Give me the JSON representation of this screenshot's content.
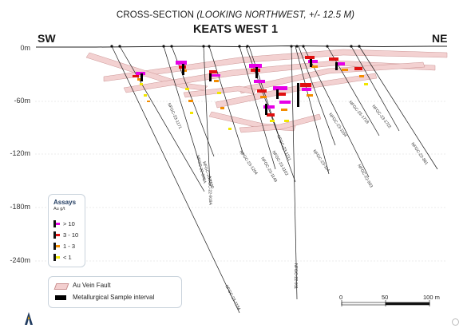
{
  "title": {
    "main": "CROSS-SECTION",
    "sub": "(LOOKING NORTHWEST, +/- 12.5 M)"
  },
  "subtitle": "KEATS WEST 1",
  "direction": {
    "left": "SW",
    "right": "NE"
  },
  "depth_axis": {
    "unit": "m",
    "ticks": [
      "0m",
      "-60m",
      "-120m",
      "-180m",
      "-240m"
    ]
  },
  "drill_holes": [
    "NFGC-23-1171",
    "NFGC-22-978A",
    "NFGC-23-1130",
    "NFGC-22-919A",
    "NFGC-23-1204",
    "NFGC-23-1149",
    "NFGC-23-1162",
    "NFGC-23-1211",
    "NFGC-23-114",
    "NFGC-23-1164",
    "NFGC-22-933",
    "NFGC-23-1718",
    "NFGC-23-1722",
    "NFGC-22-881",
    "NFGC-23-1184",
    "NFGC-22-911"
  ],
  "legend_assays": {
    "title": "Assays",
    "unit": "Au g/t",
    "items": [
      {
        "label": "> 10",
        "color": "#e600e6"
      },
      {
        "label": "3 - 10",
        "color": "#e01010"
      },
      {
        "label": "1 - 3",
        "color": "#f28c00"
      },
      {
        "label": "< 1",
        "color": "#f2e600"
      }
    ]
  },
  "legend_features": {
    "items": [
      {
        "label": "Au Vein Fault",
        "color": "#f2c4c4"
      },
      {
        "label": "Metallurgical Sample interval",
        "color": "#000000"
      }
    ]
  },
  "scale_bar": {
    "labels": [
      "0",
      "50",
      "100 m"
    ]
  },
  "colors": {
    "fault_fill": "#f3cfcf",
    "fault_stroke": "#c98f8f",
    "hole": "#1a1a1a"
  }
}
